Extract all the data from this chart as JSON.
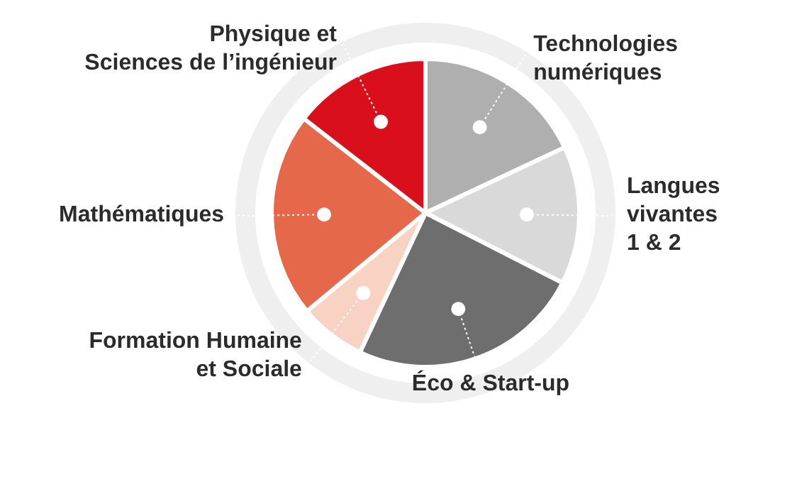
{
  "chart_data": {
    "type": "pie",
    "categories": [
      "Technologies\nnumériques",
      "Langues\nvivantes\n1 & 2",
      "Éco & Start-up",
      "Formation Humaine\net Sociale",
      "Mathématiques",
      "Physique et\nSciences de l’ingénieur"
    ],
    "values": [
      18,
      14.5,
      24.5,
      7,
      21.5,
      14.5
    ],
    "colors": [
      "#b0afaf",
      "#d9d9d9",
      "#6f6e6e",
      "#f8d3c3",
      "#e5684b",
      "#d9101c"
    ],
    "legend": false
  }
}
